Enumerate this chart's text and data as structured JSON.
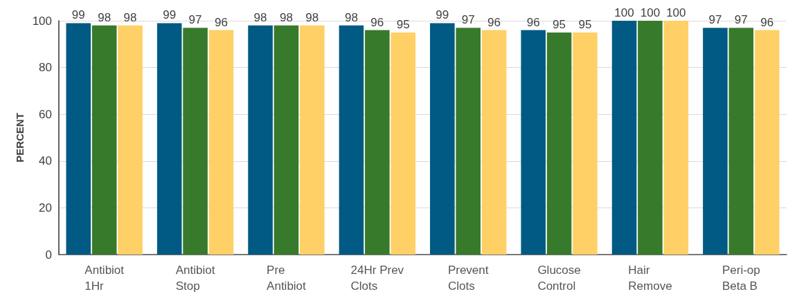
{
  "chart_data": {
    "type": "bar",
    "ylabel": "PERCENT",
    "categories": [
      "Antibiot\n1Hr",
      "Antibiot\nStop",
      "Pre\nAntibiot",
      "24Hr Prev\nClots",
      "Prevent\nClots",
      "Glucose\nControl",
      "Hair\nRemove",
      "Peri-op\nBeta B"
    ],
    "series": [
      {
        "color": "#005a83",
        "values": [
          99,
          99,
          98,
          98,
          99,
          96,
          100,
          97
        ]
      },
      {
        "color": "#387a2b",
        "values": [
          98,
          97,
          98,
          96,
          97,
          95,
          100,
          97
        ]
      },
      {
        "color": "#fed066",
        "values": [
          98,
          96,
          98,
          95,
          96,
          95,
          100,
          96
        ]
      }
    ],
    "ylim": [
      0,
      100
    ],
    "yticks": [
      0,
      20,
      40,
      60,
      80,
      100
    ],
    "grid": "y",
    "data_labels": true
  }
}
